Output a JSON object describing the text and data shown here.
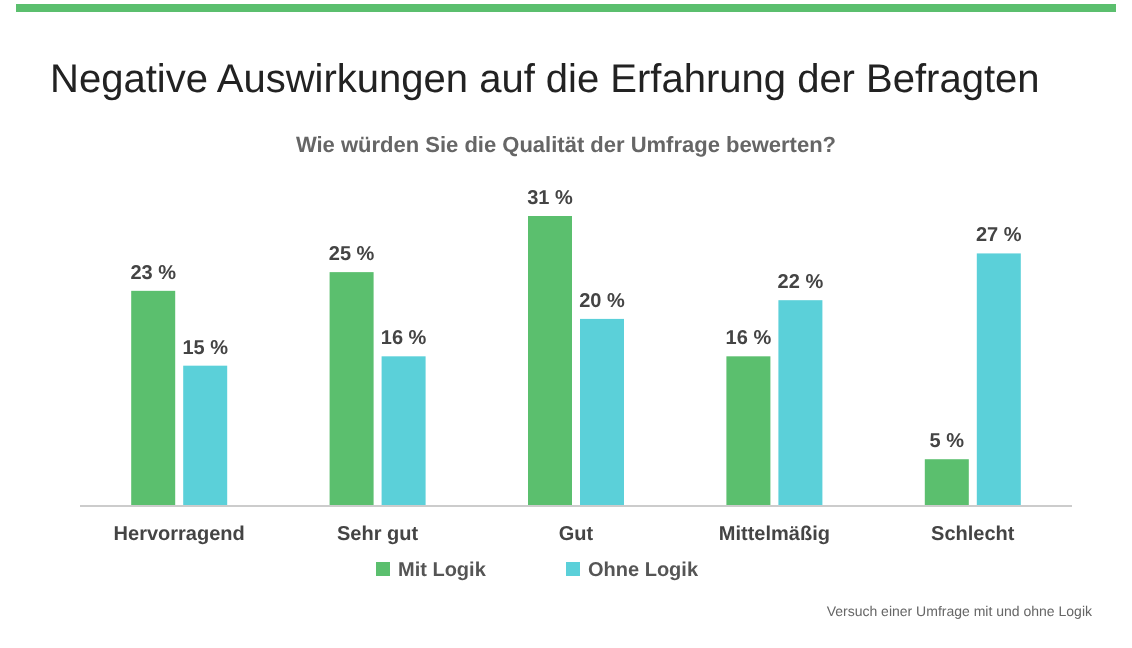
{
  "chart_data": {
    "type": "bar",
    "title": "Negative Auswirkungen auf die Erfahrung der Befragten",
    "subtitle": "Wie würden Sie die Qualität der Umfrage bewerten?",
    "categories": [
      "Hervorragend",
      "Sehr gut",
      "Gut",
      "Mittelmäßig",
      "Schlecht"
    ],
    "series": [
      {
        "name": "Mit Logik",
        "color": "#5bbf6e",
        "values": [
          23,
          25,
          31,
          16,
          5
        ],
        "value_labels": [
          "23 %",
          "25 %",
          "31 %",
          "16 %",
          "5 %"
        ]
      },
      {
        "name": "Ohne Logik",
        "color": "#5bd0d9",
        "values": [
          15,
          16,
          20,
          22,
          27
        ],
        "value_labels": [
          "15 %",
          "16 %",
          "20 %",
          "22 %",
          "27 %"
        ]
      }
    ],
    "legend": "bottom",
    "grid": false,
    "annotations": [
      "Versuch einer Umfrage mit und ohne Logik"
    ]
  }
}
